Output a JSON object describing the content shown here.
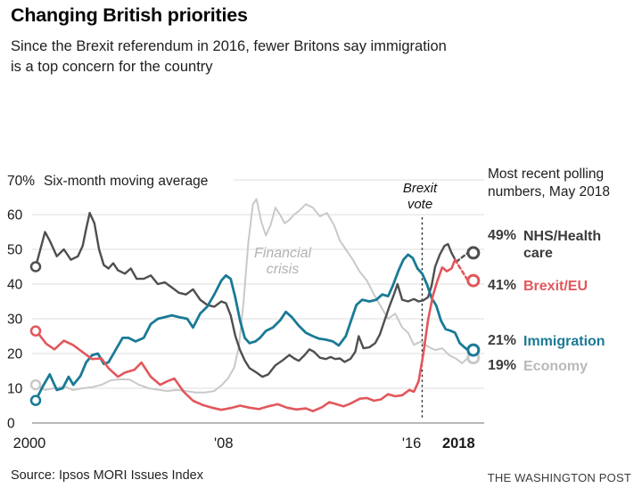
{
  "header": {
    "title": "Changing British priorities",
    "subtitle": "Since the Brexit referendum in 2016, fewer Britons say immigration\nis a top concern for the country"
  },
  "legend": {
    "header": "Most recent polling\nnumbers, May 2018",
    "items": [
      {
        "value": "49%",
        "label": "NHS/Health care",
        "color": "#3b3b3b"
      },
      {
        "value": "41%",
        "label": "Brexit/EU",
        "color": "#e2575b"
      },
      {
        "value": "21%",
        "label": "Immigration",
        "color": "#1a7a96"
      },
      {
        "value": "19%",
        "label": "Economy",
        "color": "#b9b9b9"
      }
    ]
  },
  "footer": {
    "source": "Source: Ipsos MORI Issues Index",
    "credit": "THE WASHINGTON POST"
  },
  "chart_data": {
    "type": "line",
    "title": "Changing British priorities",
    "y_top_label": "70%",
    "axis_note": "Six-month moving average",
    "xlim": [
      2000,
      2018.4
    ],
    "ylim": [
      0,
      70
    ],
    "grid": true,
    "y_grid_step": 10,
    "y_tick_labels": [
      "0",
      "10",
      "20",
      "30",
      "40",
      "50",
      "60"
    ],
    "x_ticks": [
      {
        "label": "2000",
        "year": 2000,
        "bold": false
      },
      {
        "label": "'08",
        "year": 2008,
        "bold": false
      },
      {
        "label": "'16",
        "year": 2016,
        "bold": false
      },
      {
        "label": "2018",
        "year": 2018,
        "bold": true
      }
    ],
    "annotations": [
      {
        "id": "financial-crisis",
        "text": "Financial\ncrisis"
      },
      {
        "id": "brexit-vote",
        "text": "Brexit\nvote",
        "line_x": 2016.45
      }
    ],
    "series": [
      {
        "name": "Economy",
        "color": "#c9c9c9",
        "width": 2,
        "dash_from": null,
        "points": [
          [
            2000.0,
            11
          ],
          [
            2000.4,
            9.5
          ],
          [
            2000.8,
            10
          ],
          [
            2001.2,
            10.5
          ],
          [
            2001.6,
            9.5
          ],
          [
            2002.0,
            10
          ],
          [
            2002.4,
            10.3
          ],
          [
            2002.8,
            11
          ],
          [
            2003.2,
            12.3
          ],
          [
            2003.6,
            12.6
          ],
          [
            2004.0,
            12.5
          ],
          [
            2004.4,
            11
          ],
          [
            2004.8,
            10
          ],
          [
            2005.2,
            9.6
          ],
          [
            2005.6,
            9.2
          ],
          [
            2006.0,
            9.5
          ],
          [
            2006.4,
            9.2
          ],
          [
            2006.8,
            8.8
          ],
          [
            2007.2,
            8.8
          ],
          [
            2007.6,
            9.2
          ],
          [
            2007.9,
            10.8
          ],
          [
            2008.2,
            13
          ],
          [
            2008.45,
            16
          ],
          [
            2008.65,
            22
          ],
          [
            2008.85,
            35
          ],
          [
            2009.05,
            52
          ],
          [
            2009.25,
            63
          ],
          [
            2009.4,
            64.5
          ],
          [
            2009.6,
            58
          ],
          [
            2009.8,
            54
          ],
          [
            2010.0,
            57
          ],
          [
            2010.2,
            62
          ],
          [
            2010.4,
            60
          ],
          [
            2010.6,
            57.5
          ],
          [
            2010.8,
            58.5
          ],
          [
            2011.0,
            60
          ],
          [
            2011.2,
            61
          ],
          [
            2011.5,
            63
          ],
          [
            2011.8,
            62
          ],
          [
            2012.1,
            59.5
          ],
          [
            2012.4,
            60.5
          ],
          [
            2012.7,
            57
          ],
          [
            2012.95,
            52.5
          ],
          [
            2013.2,
            50
          ],
          [
            2013.5,
            47
          ],
          [
            2013.8,
            43.5
          ],
          [
            2014.1,
            41
          ],
          [
            2014.4,
            37
          ],
          [
            2014.7,
            33.5
          ],
          [
            2015.0,
            30
          ],
          [
            2015.3,
            31.5
          ],
          [
            2015.6,
            27.5
          ],
          [
            2015.85,
            26
          ],
          [
            2016.1,
            22.5
          ],
          [
            2016.4,
            23.5
          ],
          [
            2016.7,
            22
          ],
          [
            2017.0,
            21
          ],
          [
            2017.3,
            21.5
          ],
          [
            2017.6,
            19.5
          ],
          [
            2017.9,
            18.5
          ],
          [
            2018.15,
            17.2
          ],
          [
            2018.4,
            18.8
          ]
        ]
      },
      {
        "name": "NHS/Health care",
        "color": "#4f4f4f",
        "width": 2.4,
        "dash_from": 2017.9,
        "points": [
          [
            2000.0,
            45
          ],
          [
            2000.2,
            50
          ],
          [
            2000.4,
            55
          ],
          [
            2000.6,
            52.5
          ],
          [
            2000.9,
            48
          ],
          [
            2001.2,
            50
          ],
          [
            2001.5,
            47
          ],
          [
            2001.8,
            48
          ],
          [
            2002.0,
            51
          ],
          [
            2002.15,
            56
          ],
          [
            2002.3,
            60.5
          ],
          [
            2002.5,
            57.5
          ],
          [
            2002.7,
            50
          ],
          [
            2002.9,
            45.5
          ],
          [
            2003.1,
            44.5
          ],
          [
            2003.3,
            46
          ],
          [
            2003.5,
            44
          ],
          [
            2003.8,
            43
          ],
          [
            2004.05,
            44.5
          ],
          [
            2004.3,
            41.5
          ],
          [
            2004.6,
            41.5
          ],
          [
            2004.9,
            42.5
          ],
          [
            2005.2,
            40
          ],
          [
            2005.5,
            40.5
          ],
          [
            2005.8,
            39
          ],
          [
            2006.1,
            37.5
          ],
          [
            2006.4,
            37
          ],
          [
            2006.7,
            38.5
          ],
          [
            2007.0,
            35.5
          ],
          [
            2007.3,
            34
          ],
          [
            2007.6,
            33.5
          ],
          [
            2007.9,
            35
          ],
          [
            2008.1,
            34.5
          ],
          [
            2008.3,
            31
          ],
          [
            2008.5,
            25
          ],
          [
            2008.7,
            21
          ],
          [
            2008.9,
            18
          ],
          [
            2009.1,
            15.8
          ],
          [
            2009.4,
            14.5
          ],
          [
            2009.65,
            13.3
          ],
          [
            2009.9,
            14
          ],
          [
            2010.2,
            16.6
          ],
          [
            2010.5,
            18
          ],
          [
            2010.8,
            19.6
          ],
          [
            2011.0,
            18.6
          ],
          [
            2011.2,
            17.9
          ],
          [
            2011.45,
            19.6
          ],
          [
            2011.65,
            21.2
          ],
          [
            2011.85,
            20.5
          ],
          [
            2012.1,
            18.8
          ],
          [
            2012.35,
            18.4
          ],
          [
            2012.55,
            19
          ],
          [
            2012.75,
            18.4
          ],
          [
            2012.95,
            18.6
          ],
          [
            2013.15,
            17.6
          ],
          [
            2013.4,
            18.5
          ],
          [
            2013.6,
            20.5
          ],
          [
            2013.75,
            25
          ],
          [
            2013.95,
            21.5
          ],
          [
            2014.2,
            21.8
          ],
          [
            2014.45,
            23
          ],
          [
            2014.65,
            25.5
          ],
          [
            2014.85,
            29.5
          ],
          [
            2015.05,
            33.5
          ],
          [
            2015.25,
            37
          ],
          [
            2015.4,
            40
          ],
          [
            2015.6,
            35.5
          ],
          [
            2015.85,
            35
          ],
          [
            2016.1,
            35.7
          ],
          [
            2016.3,
            35
          ],
          [
            2016.5,
            35.3
          ],
          [
            2016.7,
            36.2
          ],
          [
            2016.85,
            39.5
          ],
          [
            2017.0,
            45
          ],
          [
            2017.2,
            48.5
          ],
          [
            2017.4,
            51
          ],
          [
            2017.55,
            51.5
          ],
          [
            2017.7,
            49
          ],
          [
            2017.9,
            46.4
          ],
          [
            2018.4,
            49
          ]
        ]
      },
      {
        "name": "Immigration",
        "color": "#1a7a96",
        "width": 2.8,
        "dash_from": null,
        "points": [
          [
            2000.0,
            6.5
          ],
          [
            2000.3,
            10.5
          ],
          [
            2000.6,
            14
          ],
          [
            2000.9,
            9.5
          ],
          [
            2001.15,
            10
          ],
          [
            2001.4,
            13.3
          ],
          [
            2001.6,
            11
          ],
          [
            2001.9,
            13.5
          ],
          [
            2002.15,
            17.5
          ],
          [
            2002.4,
            19.5
          ],
          [
            2002.65,
            20
          ],
          [
            2002.9,
            17
          ],
          [
            2003.1,
            17.5
          ],
          [
            2003.4,
            21
          ],
          [
            2003.7,
            24.5
          ],
          [
            2003.95,
            24.5
          ],
          [
            2004.25,
            23.5
          ],
          [
            2004.6,
            24.5
          ],
          [
            2004.9,
            28.5
          ],
          [
            2005.2,
            30
          ],
          [
            2005.5,
            30.5
          ],
          [
            2005.8,
            31
          ],
          [
            2006.1,
            30.5
          ],
          [
            2006.45,
            30
          ],
          [
            2006.7,
            27.5
          ],
          [
            2007.0,
            31.5
          ],
          [
            2007.3,
            33.5
          ],
          [
            2007.6,
            37
          ],
          [
            2007.9,
            41
          ],
          [
            2008.1,
            42.5
          ],
          [
            2008.3,
            41.5
          ],
          [
            2008.5,
            36
          ],
          [
            2008.7,
            29.5
          ],
          [
            2008.9,
            24.5
          ],
          [
            2009.1,
            23
          ],
          [
            2009.35,
            23.5
          ],
          [
            2009.55,
            24.5
          ],
          [
            2009.8,
            26.5
          ],
          [
            2010.1,
            27.5
          ],
          [
            2010.4,
            29.5
          ],
          [
            2010.65,
            32
          ],
          [
            2010.9,
            30.5
          ],
          [
            2011.2,
            28
          ],
          [
            2011.5,
            26
          ],
          [
            2011.8,
            25
          ],
          [
            2012.05,
            24.3
          ],
          [
            2012.35,
            24
          ],
          [
            2012.65,
            23.5
          ],
          [
            2012.9,
            22.3
          ],
          [
            2013.2,
            25
          ],
          [
            2013.45,
            30
          ],
          [
            2013.65,
            34
          ],
          [
            2013.9,
            35.5
          ],
          [
            2014.2,
            35
          ],
          [
            2014.5,
            35.5
          ],
          [
            2014.75,
            37
          ],
          [
            2015.0,
            36.5
          ],
          [
            2015.2,
            39.5
          ],
          [
            2015.45,
            44
          ],
          [
            2015.65,
            47
          ],
          [
            2015.85,
            48.5
          ],
          [
            2016.05,
            47.5
          ],
          [
            2016.25,
            44.5
          ],
          [
            2016.45,
            43
          ],
          [
            2016.65,
            40
          ],
          [
            2016.85,
            36
          ],
          [
            2017.05,
            33.8
          ],
          [
            2017.25,
            29.5
          ],
          [
            2017.45,
            27
          ],
          [
            2017.65,
            26.6
          ],
          [
            2017.85,
            26
          ],
          [
            2018.05,
            23
          ],
          [
            2018.25,
            21.8
          ],
          [
            2018.4,
            21
          ]
        ]
      },
      {
        "name": "Brexit/EU",
        "color": "#e2575b",
        "width": 2.6,
        "dash_from": 2017.85,
        "points": [
          [
            2000.0,
            26.5
          ],
          [
            2000.2,
            25
          ],
          [
            2000.45,
            22.8
          ],
          [
            2000.8,
            21.2
          ],
          [
            2001.2,
            23.7
          ],
          [
            2001.6,
            22.4
          ],
          [
            2001.9,
            20.9
          ],
          [
            2002.4,
            18.4
          ],
          [
            2002.8,
            18.6
          ],
          [
            2003.1,
            15.8
          ],
          [
            2003.5,
            13.3
          ],
          [
            2003.8,
            14.5
          ],
          [
            2004.2,
            15.3
          ],
          [
            2004.5,
            17.4
          ],
          [
            2004.9,
            13.3
          ],
          [
            2005.3,
            11
          ],
          [
            2005.6,
            12
          ],
          [
            2005.9,
            12.8
          ],
          [
            2006.3,
            9
          ],
          [
            2006.7,
            6.4
          ],
          [
            2007.1,
            5.2
          ],
          [
            2007.5,
            4.4
          ],
          [
            2007.9,
            3.8
          ],
          [
            2008.3,
            4.3
          ],
          [
            2008.7,
            5
          ],
          [
            2009.1,
            4.4
          ],
          [
            2009.5,
            4
          ],
          [
            2009.9,
            4.8
          ],
          [
            2010.3,
            5.4
          ],
          [
            2010.7,
            4.4
          ],
          [
            2011.1,
            3.9
          ],
          [
            2011.5,
            4.2
          ],
          [
            2011.8,
            3.4
          ],
          [
            2012.2,
            4.6
          ],
          [
            2012.5,
            6
          ],
          [
            2012.8,
            5.4
          ],
          [
            2013.1,
            4.8
          ],
          [
            2013.4,
            5.6
          ],
          [
            2013.8,
            7
          ],
          [
            2014.1,
            7.2
          ],
          [
            2014.4,
            6.4
          ],
          [
            2014.7,
            6.8
          ],
          [
            2015.0,
            8.3
          ],
          [
            2015.3,
            7.7
          ],
          [
            2015.6,
            8
          ],
          [
            2015.9,
            9.5
          ],
          [
            2016.1,
            9
          ],
          [
            2016.3,
            12
          ],
          [
            2016.5,
            20
          ],
          [
            2016.7,
            29.5
          ],
          [
            2016.9,
            36.5
          ],
          [
            2017.1,
            41
          ],
          [
            2017.3,
            44.8
          ],
          [
            2017.5,
            43.7
          ],
          [
            2017.7,
            44.5
          ],
          [
            2017.85,
            47
          ],
          [
            2018.4,
            41
          ]
        ]
      }
    ]
  }
}
